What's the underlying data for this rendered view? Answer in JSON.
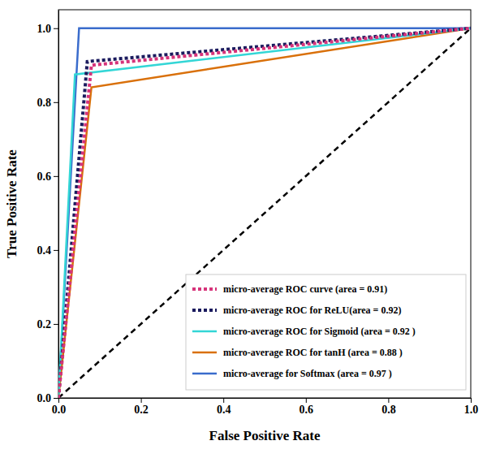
{
  "chart_data": {
    "type": "line",
    "x_label": "False Positive Rate",
    "y_label": "True Positive Rate",
    "xlim": [
      0,
      1
    ],
    "ylim": [
      0,
      1.05
    ],
    "xticks": [
      {
        "value": 0,
        "label": "0.0"
      },
      {
        "value": 0.2,
        "label": "0.2"
      },
      {
        "value": 0.4,
        "label": "0.4"
      },
      {
        "value": 0.6,
        "label": "0.6"
      },
      {
        "value": 0.8,
        "label": "0.8"
      },
      {
        "value": 1,
        "label": "1.0"
      }
    ],
    "yticks": [
      {
        "value": 0,
        "label": "0.0"
      },
      {
        "value": 0.2,
        "label": "0.2"
      },
      {
        "value": 0.4,
        "label": "0.4"
      },
      {
        "value": 0.6,
        "label": "0.6"
      },
      {
        "value": 0.8,
        "label": "0.8"
      },
      {
        "value": 1,
        "label": "1.0"
      }
    ],
    "legend": "lower right",
    "series": [
      {
        "name": "micro-average ROC curve (area = 0.91)",
        "color": "#d6337a",
        "line_style": "dotted",
        "x": [
          0,
          0.08,
          1
        ],
        "values": [
          0,
          0.9,
          1
        ]
      },
      {
        "name": "micro-average ROC for ReLU(area = 0.92)",
        "color": "#1b1b5e",
        "line_style": "dotted",
        "x": [
          0,
          0.07,
          1
        ],
        "values": [
          0,
          0.91,
          1
        ]
      },
      {
        "name": "micro-average ROC for Sigmoid (area = 0.92 )",
        "color": "#33d6d6",
        "line_style": "solid",
        "x": [
          0,
          0.04,
          1
        ],
        "values": [
          0,
          0.875,
          1
        ]
      },
      {
        "name": "micro-average ROC for tanH (area = 0.88 )",
        "color": "#d9700a",
        "line_style": "solid",
        "x": [
          0,
          0.08,
          1
        ],
        "values": [
          0,
          0.84,
          1
        ]
      },
      {
        "name": "micro-average for Softmax (area = 0.97 )",
        "color": "#3a6ccc",
        "line_style": "solid",
        "x": [
          0,
          0.05,
          1
        ],
        "values": [
          0,
          1,
          1
        ]
      },
      {
        "color": "#000000",
        "line_style": "dashed",
        "x": [
          0,
          1
        ],
        "values": [
          0,
          1
        ]
      }
    ]
  }
}
